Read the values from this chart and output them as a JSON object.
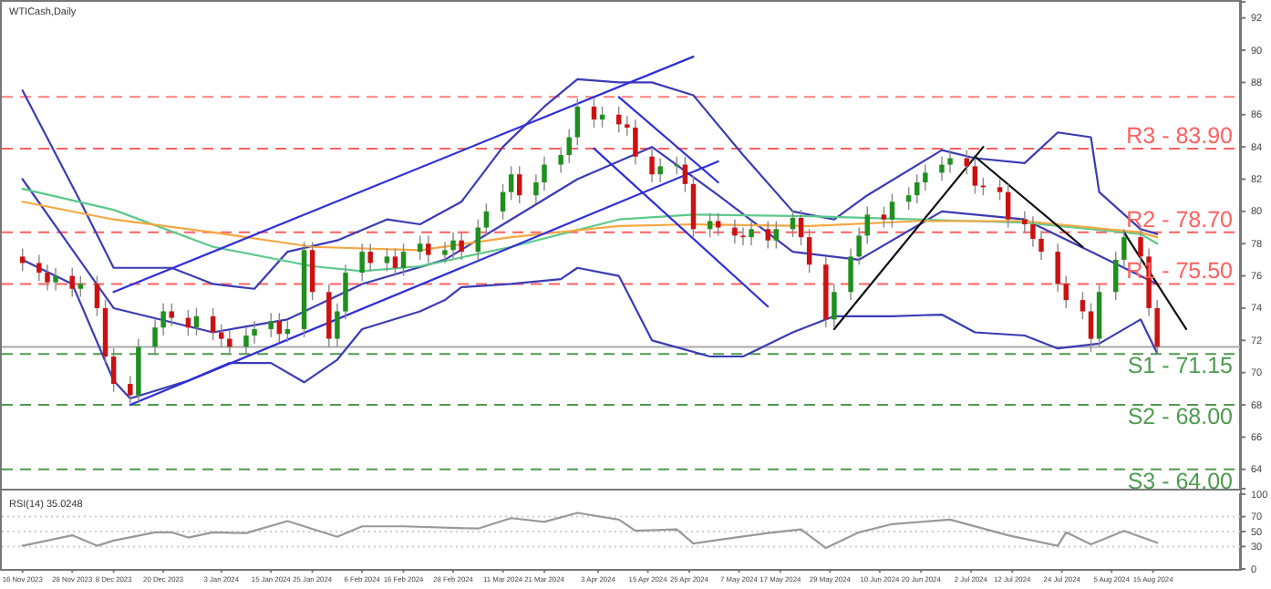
{
  "chart_data": [
    {
      "type": "candlestick",
      "title": "WTICash,Daily",
      "tick_labels": "y",
      "x": [
        "2023-11-16",
        "2023-11-20",
        "2023-11-22",
        "2023-11-24",
        "2023-11-28",
        "2023-11-30",
        "2023-12-04",
        "2023-12-06",
        "2023-12-08",
        "2023-12-12",
        "2023-12-14",
        "2023-12-18",
        "2023-12-20",
        "2023-12-22",
        "2023-12-26",
        "2023-12-28",
        "2024-01-01",
        "2024-01-03",
        "2024-01-05",
        "2024-01-09",
        "2024-01-11",
        "2024-01-15",
        "2024-01-17",
        "2024-01-19",
        "2024-01-23",
        "2024-01-25",
        "2024-01-29",
        "2024-01-31",
        "2024-02-02",
        "2024-02-06",
        "2024-02-08",
        "2024-02-12",
        "2024-02-14",
        "2024-02-16",
        "2024-02-20",
        "2024-02-22",
        "2024-02-26",
        "2024-02-28",
        "2024-03-01",
        "2024-03-05",
        "2024-03-07",
        "2024-03-11",
        "2024-03-13",
        "2024-03-15",
        "2024-03-19",
        "2024-03-21",
        "2024-03-25",
        "2024-03-27",
        "2024-03-29",
        "2024-04-02",
        "2024-04-04",
        "2024-04-08",
        "2024-04-10",
        "2024-04-12",
        "2024-04-16",
        "2024-04-18",
        "2024-04-22",
        "2024-04-24",
        "2024-04-26",
        "2024-04-30",
        "2024-05-02",
        "2024-05-06",
        "2024-05-08",
        "2024-05-10",
        "2024-05-14",
        "2024-05-16",
        "2024-05-20",
        "2024-05-22",
        "2024-05-24",
        "2024-05-28",
        "2024-05-30",
        "2024-06-03",
        "2024-06-05",
        "2024-06-07",
        "2024-06-11",
        "2024-06-13",
        "2024-06-17",
        "2024-06-19",
        "2024-06-21",
        "2024-06-25",
        "2024-06-27",
        "2024-07-01",
        "2024-07-03",
        "2024-07-05",
        "2024-07-09",
        "2024-07-11",
        "2024-07-15",
        "2024-07-17",
        "2024-07-19",
        "2024-07-23",
        "2024-07-25",
        "2024-07-29",
        "2024-07-31",
        "2024-08-02",
        "2024-08-06",
        "2024-08-08",
        "2024-08-12",
        "2024-08-14",
        "2024-08-16"
      ],
      "ohlc": [
        [
          77.2,
          77.7,
          76.3,
          76.8
        ],
        [
          76.8,
          77.3,
          75.7,
          76.2
        ],
        [
          76.2,
          76.7,
          75.1,
          75.6
        ],
        [
          75.6,
          76.5,
          75.1,
          76.0
        ],
        [
          76.0,
          76.5,
          74.7,
          75.2
        ],
        [
          75.2,
          76.0,
          74.7,
          75.5
        ],
        [
          75.5,
          76.0,
          73.5,
          74.0
        ],
        [
          74.0,
          74.5,
          70.5,
          71.0
        ],
        [
          71.0,
          71.5,
          68.8,
          69.3
        ],
        [
          69.3,
          69.8,
          68.1,
          68.6
        ],
        [
          68.6,
          72.1,
          68.1,
          71.6
        ],
        [
          71.6,
          73.3,
          71.1,
          72.8
        ],
        [
          72.8,
          74.3,
          72.3,
          73.8
        ],
        [
          73.8,
          74.3,
          72.9,
          73.4
        ],
        [
          73.4,
          73.9,
          72.3,
          72.8
        ],
        [
          72.8,
          74.0,
          72.3,
          73.5
        ],
        [
          73.5,
          74.0,
          72.0,
          72.5
        ],
        [
          72.5,
          73.0,
          71.6,
          72.1
        ],
        [
          72.1,
          72.6,
          71.1,
          71.6
        ],
        [
          71.6,
          72.8,
          71.1,
          72.3
        ],
        [
          72.3,
          73.2,
          71.8,
          72.7
        ],
        [
          72.7,
          73.7,
          72.2,
          73.2
        ],
        [
          73.2,
          73.7,
          71.9,
          72.4
        ],
        [
          72.4,
          73.2,
          71.9,
          72.7
        ],
        [
          72.7,
          78.1,
          72.2,
          77.6
        ],
        [
          77.6,
          78.1,
          74.5,
          75.0
        ],
        [
          75.0,
          75.5,
          71.6,
          72.1
        ],
        [
          72.1,
          74.3,
          71.6,
          73.8
        ],
        [
          73.8,
          76.7,
          73.3,
          76.2
        ],
        [
          76.2,
          78.0,
          75.7,
          77.5
        ],
        [
          77.5,
          78.0,
          76.3,
          76.8
        ],
        [
          76.8,
          77.7,
          76.3,
          77.2
        ],
        [
          77.2,
          77.7,
          76.0,
          76.5
        ],
        [
          76.5,
          78.0,
          76.0,
          77.5
        ],
        [
          77.5,
          78.5,
          77.0,
          78.0
        ],
        [
          78.0,
          78.5,
          76.8,
          77.3
        ],
        [
          77.3,
          78.1,
          76.8,
          77.6
        ],
        [
          77.6,
          78.7,
          77.1,
          78.2
        ],
        [
          78.2,
          78.7,
          77.0,
          77.5
        ],
        [
          77.5,
          79.5,
          77.0,
          79.0
        ],
        [
          79.0,
          80.5,
          78.5,
          80.0
        ],
        [
          80.0,
          81.7,
          79.5,
          81.2
        ],
        [
          81.2,
          82.8,
          80.7,
          82.3
        ],
        [
          82.3,
          82.8,
          80.5,
          81.0
        ],
        [
          81.0,
          82.3,
          80.5,
          81.8
        ],
        [
          81.8,
          83.4,
          81.3,
          82.9
        ],
        [
          82.9,
          84.0,
          82.4,
          83.5
        ],
        [
          83.5,
          85.1,
          83.0,
          84.6
        ],
        [
          84.6,
          87.0,
          84.1,
          86.5
        ],
        [
          86.5,
          87.0,
          85.2,
          85.7
        ],
        [
          85.7,
          86.5,
          85.2,
          86.0
        ],
        [
          86.0,
          86.5,
          84.9,
          85.4
        ],
        [
          85.4,
          85.9,
          84.7,
          85.2
        ],
        [
          85.2,
          85.7,
          82.9,
          83.4
        ],
        [
          83.4,
          83.9,
          81.8,
          82.3
        ],
        [
          82.3,
          83.3,
          81.8,
          82.8
        ],
        [
          82.8,
          83.4,
          82.3,
          82.9
        ],
        [
          82.9,
          83.4,
          81.2,
          81.7
        ],
        [
          81.7,
          82.2,
          78.4,
          78.9
        ],
        [
          78.9,
          79.9,
          78.4,
          79.4
        ],
        [
          79.4,
          79.9,
          78.5,
          79.0
        ],
        [
          79.0,
          79.5,
          78.0,
          78.5
        ],
        [
          78.5,
          79.0,
          77.9,
          78.4
        ],
        [
          78.4,
          79.4,
          77.9,
          78.9
        ],
        [
          78.9,
          79.4,
          77.7,
          78.2
        ],
        [
          78.2,
          79.4,
          77.7,
          78.9
        ],
        [
          78.9,
          80.1,
          78.4,
          79.6
        ],
        [
          79.6,
          80.1,
          77.9,
          78.4
        ],
        [
          78.4,
          78.9,
          76.2,
          76.7
        ],
        [
          76.7,
          77.2,
          72.8,
          73.3
        ],
        [
          73.3,
          75.5,
          72.8,
          75.0
        ],
        [
          75.0,
          77.7,
          74.5,
          77.2
        ],
        [
          77.2,
          79.0,
          76.7,
          78.5
        ],
        [
          78.5,
          80.3,
          78.0,
          79.8
        ],
        [
          79.8,
          80.3,
          79.0,
          79.5
        ],
        [
          79.5,
          81.1,
          79.0,
          80.6
        ],
        [
          80.6,
          81.5,
          80.1,
          81.0
        ],
        [
          81.0,
          82.3,
          80.5,
          81.8
        ],
        [
          81.8,
          82.9,
          81.3,
          82.4
        ],
        [
          82.4,
          83.4,
          81.9,
          82.9
        ],
        [
          82.9,
          83.8,
          82.4,
          83.3
        ],
        [
          83.3,
          83.8,
          82.3,
          82.8
        ],
        [
          82.8,
          83.3,
          81.1,
          81.6
        ],
        [
          81.6,
          82.1,
          81.0,
          81.5
        ],
        [
          81.5,
          82.0,
          80.7,
          81.2
        ],
        [
          81.2,
          81.7,
          79.0,
          79.5
        ],
        [
          79.5,
          80.0,
          78.7,
          79.2
        ],
        [
          79.2,
          79.7,
          77.8,
          78.3
        ],
        [
          78.3,
          78.8,
          77.0,
          77.5
        ],
        [
          77.5,
          78.0,
          75.0,
          75.5
        ],
        [
          75.5,
          76.0,
          74.0,
          74.5
        ],
        [
          74.5,
          75.0,
          73.3,
          73.8
        ],
        [
          73.8,
          74.3,
          71.3,
          72.1
        ],
        [
          72.1,
          75.5,
          71.6,
          75.0
        ],
        [
          75.0,
          77.5,
          74.5,
          77.0
        ],
        [
          77.0,
          78.9,
          76.5,
          78.4
        ],
        [
          78.4,
          78.9,
          76.7,
          77.2
        ],
        [
          77.2,
          77.7,
          73.5,
          74.0
        ],
        [
          74.0,
          74.5,
          71.1,
          71.6
        ]
      ],
      "series": [
        {
          "type": "line",
          "color": "#3b3bb5",
          "x": [
            "2023-11-16",
            "2023-11-30",
            "2023-12-08",
            "2023-12-22",
            "2024-01-01",
            "2024-01-11",
            "2024-01-19",
            "2024-01-31",
            "2024-02-12",
            "2024-02-20",
            "2024-03-01",
            "2024-03-11",
            "2024-03-21",
            "2024-03-29",
            "2024-04-08",
            "2024-04-16",
            "2024-04-26",
            "2024-05-08",
            "2024-05-20",
            "2024-05-30",
            "2024-06-07",
            "2024-06-25",
            "2024-07-03",
            "2024-07-15",
            "2024-07-23",
            "2024-07-31",
            "2024-08-02",
            "2024-08-12",
            "2024-08-16"
          ],
          "values": [
            87.5,
            80.6,
            76.5,
            76.5,
            75.5,
            75.2,
            77.5,
            78.2,
            79.5,
            79.2,
            80.6,
            84.0,
            86.5,
            88.2,
            88.0,
            88.0,
            87.2,
            83.5,
            80.0,
            79.5,
            81.0,
            83.8,
            83.3,
            83.0,
            84.9,
            84.6,
            81.2,
            78.9,
            78.6
          ]
        },
        {
          "type": "line",
          "color": "#3b3bb5",
          "x": [
            "2023-11-16",
            "2023-12-08",
            "2024-01-01",
            "2024-01-19",
            "2024-02-06",
            "2024-02-26",
            "2024-03-13",
            "2024-03-29",
            "2024-04-16",
            "2024-05-02",
            "2024-05-20",
            "2024-06-05",
            "2024-06-25",
            "2024-07-15",
            "2024-07-31",
            "2024-08-16"
          ],
          "values": [
            82.0,
            74.0,
            72.5,
            73.3,
            75.5,
            77.0,
            79.5,
            82.0,
            84.0,
            81.0,
            77.5,
            77.0,
            80.0,
            79.5,
            77.5,
            75.5
          ]
        },
        {
          "type": "line",
          "color": "#3b3bb5",
          "x": [
            "2023-11-16",
            "2023-11-28",
            "2023-12-08",
            "2023-12-12",
            "2023-12-26",
            "2024-01-05",
            "2024-01-15",
            "2024-01-23",
            "2024-01-31",
            "2024-02-06",
            "2024-02-20",
            "2024-02-26",
            "2024-03-01",
            "2024-03-13",
            "2024-03-25",
            "2024-03-29",
            "2024-04-08",
            "2024-04-16",
            "2024-04-30",
            "2024-05-08",
            "2024-05-20",
            "2024-05-30",
            "2024-06-13",
            "2024-06-25",
            "2024-07-03",
            "2024-07-15",
            "2024-07-23",
            "2024-08-02",
            "2024-08-12",
            "2024-08-16"
          ],
          "values": [
            77.0,
            75.5,
            69.5,
            68.4,
            69.5,
            70.6,
            70.6,
            69.4,
            70.8,
            72.7,
            73.8,
            74.5,
            75.3,
            75.5,
            75.8,
            76.5,
            76.0,
            72.0,
            71.0,
            71.0,
            72.5,
            73.5,
            73.5,
            73.6,
            72.5,
            72.3,
            71.5,
            71.8,
            73.3,
            71.2
          ]
        },
        {
          "type": "line",
          "color": "#5cc98a",
          "x": [
            "2023-11-16",
            "2023-12-08",
            "2024-01-01",
            "2024-01-25",
            "2024-02-06",
            "2024-02-20",
            "2024-03-13",
            "2024-04-08",
            "2024-04-26",
            "2024-05-24",
            "2024-06-19",
            "2024-07-15",
            "2024-08-12",
            "2024-08-16"
          ],
          "values": [
            81.4,
            80.1,
            77.8,
            76.6,
            76.3,
            76.6,
            77.8,
            79.5,
            79.8,
            79.7,
            79.5,
            79.3,
            78.6,
            78.0
          ]
        },
        {
          "type": "line",
          "color": "#f5a742",
          "x": [
            "2023-11-16",
            "2023-12-08",
            "2024-01-01",
            "2024-01-25",
            "2024-02-20",
            "2024-03-13",
            "2024-04-08",
            "2024-04-26",
            "2024-05-24",
            "2024-06-19",
            "2024-07-15",
            "2024-08-12",
            "2024-08-16"
          ],
          "values": [
            80.6,
            79.5,
            78.7,
            77.8,
            77.6,
            78.4,
            79.1,
            79.2,
            79.1,
            79.4,
            79.4,
            78.7,
            78.4
          ]
        },
        {
          "type": "line",
          "color": "#2f2fd8",
          "x": [
            "2023-12-12",
            "2024-05-02"
          ],
          "values": [
            68.0,
            83.1
          ]
        },
        {
          "type": "line",
          "color": "#2f2fd8",
          "x": [
            "2023-12-08",
            "2024-04-26"
          ],
          "values": [
            75.0,
            89.6
          ]
        },
        {
          "type": "line",
          "color": "#2f2fd8",
          "x": [
            "2024-04-02",
            "2024-05-14"
          ],
          "values": [
            83.9,
            74.1
          ]
        },
        {
          "type": "line",
          "color": "#2f2fd8",
          "x": [
            "2024-04-08",
            "2024-05-02"
          ],
          "values": [
            87.1,
            81.8
          ]
        },
        {
          "type": "line",
          "color": "#111111",
          "x": [
            "2024-05-30",
            "2024-07-05"
          ],
          "values": [
            72.7,
            84.0
          ]
        },
        {
          "type": "line",
          "color": "#111111",
          "x": [
            "2024-07-03",
            "2024-07-29"
          ],
          "values": [
            83.4,
            77.8
          ]
        },
        {
          "type": "line",
          "color": "#111111",
          "x": [
            "2024-08-08",
            "2024-08-23"
          ],
          "values": [
            78.7,
            72.7
          ]
        }
      ],
      "xlim": [
        "2023-11-11",
        "2024-09-05"
      ],
      "ylim": [
        62.8,
        93.0
      ],
      "yticks": [
        64,
        66,
        68,
        70,
        72,
        74,
        76,
        78,
        80,
        82,
        84,
        86,
        88,
        90,
        92
      ],
      "ref_lines": [
        {
          "axis": "y",
          "value": 87.1,
          "label": null,
          "color": "#ff8080",
          "line_style": "dashed"
        },
        {
          "axis": "y",
          "value": 83.9,
          "label": "R3 - 83.90",
          "color": "#ff6060",
          "line_style": "dashed"
        },
        {
          "axis": "y",
          "value": 78.7,
          "label": "R2 - 78.70",
          "color": "#ff6060",
          "line_style": "dashed"
        },
        {
          "axis": "y",
          "value": 75.5,
          "label": "R1 - 75.50",
          "color": "#ff6060",
          "line_style": "dashed"
        },
        {
          "axis": "y",
          "value": 71.6,
          "label": null,
          "color": "#aaaaaa",
          "line_style": "solid"
        },
        {
          "axis": "y",
          "value": 71.15,
          "label": "S1 - 71.15",
          "color": "#4f9a4f",
          "line_style": "dashed"
        },
        {
          "axis": "y",
          "value": 68.0,
          "label": "S2 - 68.00",
          "color": "#4f9a4f",
          "line_style": "dashed"
        },
        {
          "axis": "y",
          "value": 64.0,
          "label": "S3 - 64.00",
          "color": "#4f9a4f",
          "line_style": "dashed"
        }
      ]
    },
    {
      "type": "line",
      "title": "RSI(14) 35.0248",
      "x": [
        "2023-11-16",
        "2023-11-28",
        "2023-12-04",
        "2023-12-08",
        "2023-12-18",
        "2023-12-22",
        "2023-12-26",
        "2024-01-01",
        "2024-01-09",
        "2024-01-19",
        "2024-01-31",
        "2024-02-06",
        "2024-02-16",
        "2024-03-05",
        "2024-03-13",
        "2024-03-21",
        "2024-03-29",
        "2024-04-08",
        "2024-04-12",
        "2024-04-22",
        "2024-04-26",
        "2024-05-06",
        "2024-05-14",
        "2024-05-22",
        "2024-05-28",
        "2024-06-05",
        "2024-06-13",
        "2024-06-27",
        "2024-07-11",
        "2024-07-23",
        "2024-07-25",
        "2024-07-31",
        "2024-08-08",
        "2024-08-16"
      ],
      "series": [
        {
          "color": "#999999",
          "values": [
            31,
            45,
            31,
            38,
            49,
            49,
            42,
            49,
            48,
            64,
            43,
            57,
            57,
            54,
            68,
            63,
            75,
            66,
            51,
            53,
            34,
            42,
            48,
            53,
            28,
            49,
            60,
            66,
            45,
            31,
            49,
            33,
            51,
            35
          ]
        }
      ],
      "xlim": [
        "2023-11-11",
        "2024-09-05"
      ],
      "ylim": [
        0,
        100
      ],
      "yticks": [
        0,
        30,
        50,
        70,
        100
      ],
      "xticks": [
        {
          "value": "2023-11-16",
          "label": "16 Nov 2023"
        },
        {
          "value": "2023-11-28",
          "label": "28 Nov 2023"
        },
        {
          "value": "2023-12-08",
          "label": "8 Dec 2023"
        },
        {
          "value": "2023-12-20",
          "label": "20 Dec 2023"
        },
        {
          "value": "2024-01-03",
          "label": "3 Jan 2024"
        },
        {
          "value": "2024-01-15",
          "label": "15 Jan 2024"
        },
        {
          "value": "2024-01-25",
          "label": "25 Jan 2024"
        },
        {
          "value": "2024-02-06",
          "label": "6 Feb 2024"
        },
        {
          "value": "2024-02-16",
          "label": "16 Feb 2024"
        },
        {
          "value": "2024-02-28",
          "label": "28 Feb 2024"
        },
        {
          "value": "2024-03-11",
          "label": "11 Mar 2024"
        },
        {
          "value": "2024-03-21",
          "label": "21 Mar 2024"
        },
        {
          "value": "2024-04-03",
          "label": "3 Apr 2024"
        },
        {
          "value": "2024-04-15",
          "label": "15 Apr 2024"
        },
        {
          "value": "2024-04-25",
          "label": "25 Apr 2024"
        },
        {
          "value": "2024-05-07",
          "label": "7 May 2024"
        },
        {
          "value": "2024-05-17",
          "label": "17 May 2024"
        },
        {
          "value": "2024-05-29",
          "label": "29 May 2024"
        },
        {
          "value": "2024-06-10",
          "label": "10 Jun 2024"
        },
        {
          "value": "2024-06-20",
          "label": "20 Jun 2024"
        },
        {
          "value": "2024-07-02",
          "label": "2 Jul 2024"
        },
        {
          "value": "2024-07-12",
          "label": "12 Jul 2024"
        },
        {
          "value": "2024-07-24",
          "label": "24 Jul 2024"
        },
        {
          "value": "2024-08-05",
          "label": "5 Aug 2024"
        },
        {
          "value": "2024-08-15",
          "label": "15 Aug 2024"
        }
      ],
      "ref_lines": [
        {
          "axis": "y",
          "value": 30,
          "label": null,
          "color": "#cccccc",
          "line_style": "dotted"
        },
        {
          "axis": "y",
          "value": 50,
          "label": null,
          "color": "#cccccc",
          "line_style": "dotted"
        },
        {
          "axis": "y",
          "value": 70,
          "label": null,
          "color": "#cccccc",
          "line_style": "dotted"
        }
      ]
    }
  ]
}
